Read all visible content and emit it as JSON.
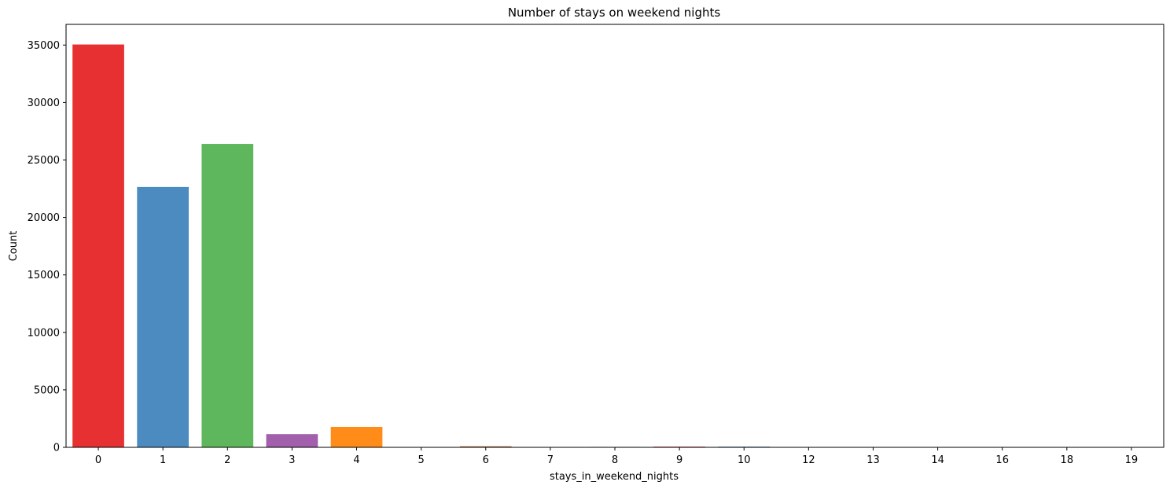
{
  "chart_data": {
    "type": "bar",
    "title": "Number of stays on weekend nights",
    "xlabel": "stays_in_weekend_nights",
    "ylabel": "Count",
    "categories": [
      "0",
      "1",
      "2",
      "3",
      "4",
      "5",
      "6",
      "7",
      "8",
      "9",
      "10",
      "12",
      "13",
      "14",
      "16",
      "18",
      "19"
    ],
    "values": [
      35050,
      22650,
      26400,
      1150,
      1780,
      25,
      90,
      30,
      40,
      60,
      60,
      3,
      2,
      2,
      2,
      1,
      1
    ],
    "colors": [
      "#e41a1c",
      "#377eb8",
      "#4daf4a",
      "#984ea3",
      "#ff7f00",
      "#ffff33",
      "#a65628",
      "#f781bf",
      "#999999",
      "#e41a1c",
      "#377eb8",
      "#4daf4a",
      "#984ea3",
      "#ff7f00",
      "#ffff33",
      "#a65628",
      "#f781bf"
    ],
    "yticks": [
      0,
      5000,
      10000,
      15000,
      20000,
      25000,
      30000,
      35000
    ],
    "ylim": [
      0,
      36800
    ],
    "grid": false,
    "legend": false
  }
}
